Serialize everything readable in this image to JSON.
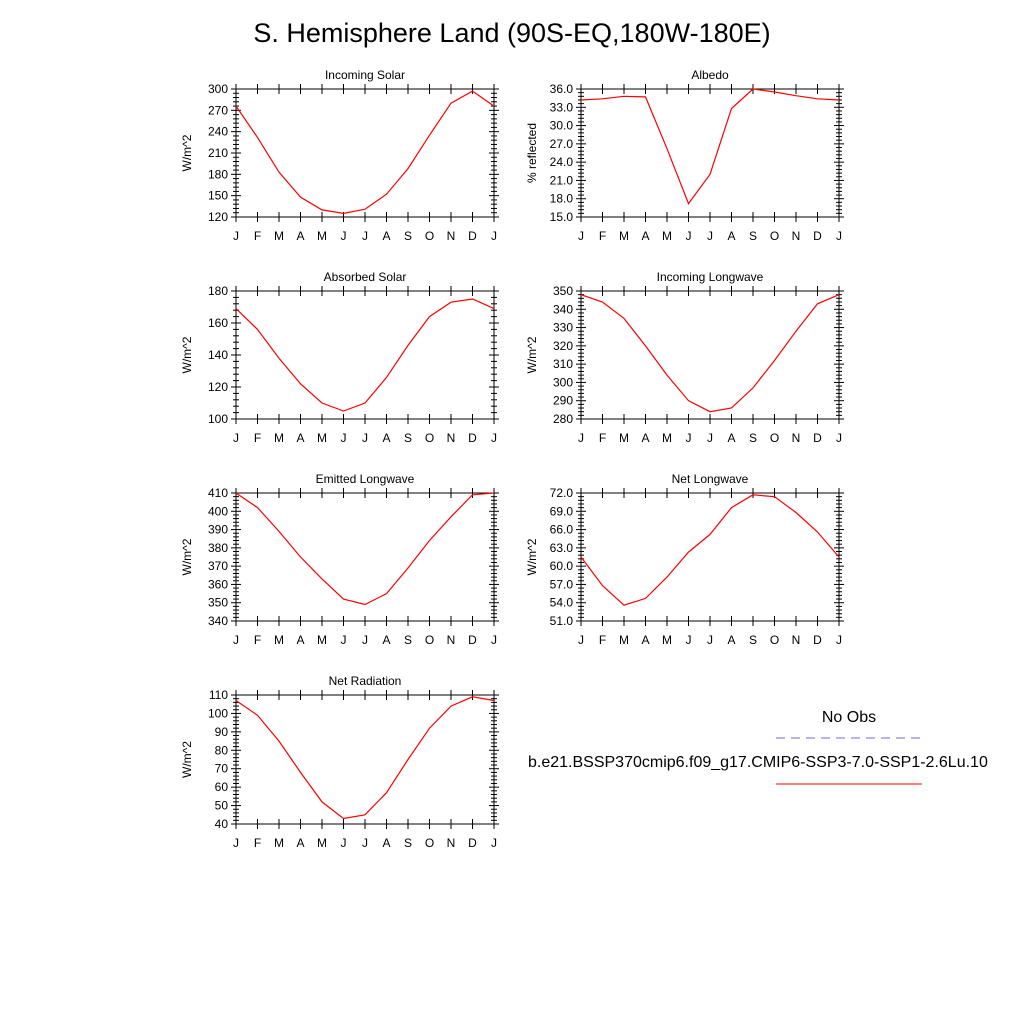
{
  "title": "S. Hemisphere Land (90S-EQ,180W-180E)",
  "month_labels": [
    "J",
    "F",
    "M",
    "A",
    "M",
    "J",
    "J",
    "A",
    "S",
    "O",
    "N",
    "D",
    "J"
  ],
  "legend": {
    "obs_label": "No Obs",
    "obs_color": "#6b6bdb",
    "model_label": "b.e21.BSSP370cmip6.f09_g17.CMIP6-SSP3-7.0-SSP1-2.6Lu.10",
    "model_color": "#ff0000"
  },
  "chart_data": [
    {
      "type": "line",
      "title": "Incoming Solar",
      "xlabel": "",
      "ylabel": "W/m^2",
      "ylim": [
        120,
        300
      ],
      "yticks": [
        120,
        150,
        180,
        210,
        240,
        270,
        300
      ],
      "tick_decimals": 0,
      "series": [
        {
          "values": [
            276,
            232,
            183,
            148,
            130,
            125,
            131,
            152,
            188,
            235,
            280,
            297,
            276
          ]
        }
      ]
    },
    {
      "type": "line",
      "title": "Albedo",
      "xlabel": "",
      "ylabel": "% reflected",
      "ylim": [
        15,
        36
      ],
      "yticks": [
        15,
        18,
        21,
        24,
        27,
        30,
        33,
        36
      ],
      "tick_decimals": 1,
      "series": [
        {
          "values": [
            34.2,
            34.4,
            34.8,
            34.7,
            26.2,
            17.2,
            22.0,
            32.8,
            36.0,
            35.5,
            34.9,
            34.4,
            34.2
          ]
        }
      ]
    },
    {
      "type": "line",
      "title": "Absorbed Solar",
      "xlabel": "",
      "ylabel": "W/m^2",
      "ylim": [
        100,
        180
      ],
      "yticks": [
        100,
        120,
        140,
        160,
        180
      ],
      "tick_decimals": 0,
      "series": [
        {
          "values": [
            169,
            156,
            138,
            122,
            110,
            105,
            110,
            126,
            146,
            164,
            173,
            175,
            169
          ]
        }
      ]
    },
    {
      "type": "line",
      "title": "Incoming Longwave",
      "xlabel": "",
      "ylabel": "W/m^2",
      "ylim": [
        280,
        350
      ],
      "yticks": [
        280,
        290,
        300,
        310,
        320,
        330,
        340,
        350
      ],
      "tick_decimals": 0,
      "series": [
        {
          "values": [
            348,
            344,
            335,
            320,
            304,
            290,
            284,
            286,
            297,
            312,
            328,
            343,
            348
          ]
        }
      ]
    },
    {
      "type": "line",
      "title": "Emitted Longwave",
      "xlabel": "",
      "ylabel": "W/m^2",
      "ylim": [
        340,
        410
      ],
      "yticks": [
        340,
        350,
        360,
        370,
        380,
        390,
        400,
        410
      ],
      "tick_decimals": 0,
      "series": [
        {
          "values": [
            410,
            402,
            389,
            375,
            363,
            352,
            349,
            355,
            369,
            384,
            397,
            409,
            410
          ]
        }
      ]
    },
    {
      "type": "line",
      "title": "Net Longwave",
      "xlabel": "",
      "ylabel": "W/m^2",
      "ylim": [
        51,
        72
      ],
      "yticks": [
        51,
        54,
        57,
        60,
        63,
        66,
        69,
        72
      ],
      "tick_decimals": 1,
      "series": [
        {
          "values": [
            61.5,
            56.8,
            53.6,
            54.7,
            58.2,
            62.3,
            65.2,
            69.6,
            71.7,
            71.4,
            68.8,
            65.6,
            61.5
          ]
        }
      ]
    },
    {
      "type": "line",
      "title": "Net Radiation",
      "xlabel": "",
      "ylabel": "W/m^2",
      "ylim": [
        40,
        110
      ],
      "yticks": [
        40,
        50,
        60,
        70,
        80,
        90,
        100,
        110
      ],
      "tick_decimals": 0,
      "series": [
        {
          "values": [
            107,
            99,
            85,
            68,
            52,
            43,
            45,
            57,
            75,
            92,
            104,
            109,
            107
          ]
        }
      ]
    }
  ]
}
